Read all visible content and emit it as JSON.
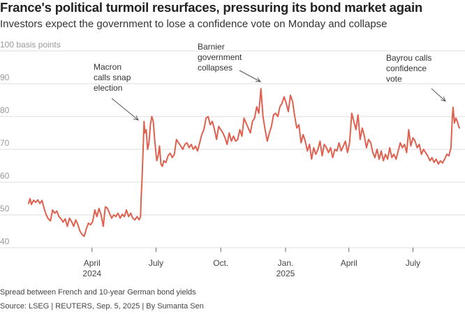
{
  "header": {
    "title": "France's political turmoil resurfaces, pressuring its bond market again",
    "subtitle": "Investors expect the government to lose a confidence vote on Monday and collapse"
  },
  "footer": {
    "note": "Spread between French and 10-year German bond yields",
    "source": "Source: LSEG | REUTERS, Sep. 5, 2025 | By Sumanta Sen"
  },
  "chart_data": {
    "type": "line",
    "title": "France's political turmoil resurfaces, pressuring its bond market again",
    "subtitle": "Investors expect the government to lose a confidence vote on Monday and collapse",
    "ylabel": "100 basis points",
    "ylim": [
      40,
      100
    ],
    "yticks": [
      100,
      90,
      80,
      70,
      60,
      50,
      40
    ],
    "ytick_labels": [
      "100 basis points",
      "90",
      "80",
      "70",
      "60",
      "50",
      "40"
    ],
    "xlim": [
      "2024-01-01",
      "2025-09-05"
    ],
    "xticks": [
      {
        "date": "2024-04-01",
        "label": "April",
        "sublabel": "2024"
      },
      {
        "date": "2024-07-01",
        "label": "July",
        "sublabel": ""
      },
      {
        "date": "2024-10-01",
        "label": "Oct.",
        "sublabel": ""
      },
      {
        "date": "2025-01-01",
        "label": "Jan.",
        "sublabel": "2025"
      },
      {
        "date": "2025-04-01",
        "label": "April",
        "sublabel": ""
      },
      {
        "date": "2025-07-01",
        "label": "July",
        "sublabel": ""
      }
    ],
    "grid": true,
    "color": "#e0604f",
    "series": [
      {
        "points": [
          [
            "2024-01-02",
            53.5
          ],
          [
            "2024-01-04",
            55.0
          ],
          [
            "2024-01-06",
            53.2
          ],
          [
            "2024-01-09",
            54.5
          ],
          [
            "2024-01-12",
            53.8
          ],
          [
            "2024-01-15",
            54.6
          ],
          [
            "2024-01-18",
            53.5
          ],
          [
            "2024-01-21",
            54.4
          ],
          [
            "2024-01-24",
            52.0
          ],
          [
            "2024-01-27",
            50.0
          ],
          [
            "2024-01-30",
            48.8
          ],
          [
            "2024-02-02",
            48.2
          ],
          [
            "2024-02-05",
            51.5
          ],
          [
            "2024-02-08",
            50.5
          ],
          [
            "2024-02-11",
            51.2
          ],
          [
            "2024-02-14",
            49.5
          ],
          [
            "2024-02-17",
            48.8
          ],
          [
            "2024-02-20",
            47.8
          ],
          [
            "2024-02-23",
            48.8
          ],
          [
            "2024-02-26",
            46.5
          ],
          [
            "2024-02-29",
            49.0
          ],
          [
            "2024-03-03",
            48.0
          ],
          [
            "2024-03-06",
            46.5
          ],
          [
            "2024-03-09",
            48.5
          ],
          [
            "2024-03-12",
            47.0
          ],
          [
            "2024-03-15",
            45.0
          ],
          [
            "2024-03-18",
            44.0
          ],
          [
            "2024-03-21",
            43.5
          ],
          [
            "2024-03-24",
            45.8
          ],
          [
            "2024-03-27",
            47.5
          ],
          [
            "2024-03-30",
            47.0
          ],
          [
            "2024-04-02",
            48.0
          ],
          [
            "2024-04-05",
            51.5
          ],
          [
            "2024-04-08",
            49.5
          ],
          [
            "2024-04-11",
            52.0
          ],
          [
            "2024-04-14",
            50.0
          ],
          [
            "2024-04-17",
            46.5
          ],
          [
            "2024-04-20",
            52.5
          ],
          [
            "2024-04-23",
            52.0
          ],
          [
            "2024-04-26",
            50.5
          ],
          [
            "2024-04-29",
            49.0
          ],
          [
            "2024-05-02",
            50.0
          ],
          [
            "2024-05-05",
            49.5
          ],
          [
            "2024-05-08",
            50.5
          ],
          [
            "2024-05-11",
            49.0
          ],
          [
            "2024-05-14",
            50.2
          ],
          [
            "2024-05-17",
            49.5
          ],
          [
            "2024-05-20",
            51.5
          ],
          [
            "2024-05-23",
            49.5
          ],
          [
            "2024-05-26",
            50.5
          ],
          [
            "2024-05-29",
            49.0
          ],
          [
            "2024-06-01",
            48.5
          ],
          [
            "2024-06-04",
            49.5
          ],
          [
            "2024-06-07",
            48.5
          ],
          [
            "2024-06-09",
            49.5
          ],
          [
            "2024-06-10",
            56.0
          ],
          [
            "2024-06-11",
            60.0
          ],
          [
            "2024-06-12",
            66.0
          ],
          [
            "2024-06-13",
            72.0
          ],
          [
            "2024-06-14",
            78.5
          ],
          [
            "2024-06-15",
            75.0
          ],
          [
            "2024-06-17",
            76.0
          ],
          [
            "2024-06-19",
            70.0
          ],
          [
            "2024-06-21",
            72.0
          ],
          [
            "2024-06-23",
            77.5
          ],
          [
            "2024-06-25",
            80.0
          ],
          [
            "2024-06-27",
            78.5
          ],
          [
            "2024-06-29",
            73.0
          ],
          [
            "2024-07-02",
            66.5
          ],
          [
            "2024-07-04",
            68.0
          ],
          [
            "2024-07-06",
            71.0
          ],
          [
            "2024-07-08",
            65.5
          ],
          [
            "2024-07-10",
            64.8
          ],
          [
            "2024-07-12",
            66.5
          ],
          [
            "2024-07-15",
            66.0
          ],
          [
            "2024-07-18",
            68.0
          ],
          [
            "2024-07-21",
            68.8
          ],
          [
            "2024-07-24",
            67.5
          ],
          [
            "2024-07-27",
            68.5
          ],
          [
            "2024-07-30",
            73.0
          ],
          [
            "2024-08-02",
            72.0
          ],
          [
            "2024-08-05",
            71.0
          ],
          [
            "2024-08-08",
            70.0
          ],
          [
            "2024-08-11",
            71.5
          ],
          [
            "2024-08-14",
            72.0
          ],
          [
            "2024-08-17",
            70.5
          ],
          [
            "2024-08-20",
            71.5
          ],
          [
            "2024-08-23",
            70.0
          ],
          [
            "2024-08-26",
            71.0
          ],
          [
            "2024-08-29",
            69.5
          ],
          [
            "2024-09-01",
            72.0
          ],
          [
            "2024-09-04",
            74.5
          ],
          [
            "2024-09-07",
            76.0
          ],
          [
            "2024-09-10",
            79.5
          ],
          [
            "2024-09-13",
            80.0
          ],
          [
            "2024-09-16",
            77.5
          ],
          [
            "2024-09-19",
            78.5
          ],
          [
            "2024-09-22",
            76.0
          ],
          [
            "2024-09-25",
            73.0
          ],
          [
            "2024-09-28",
            77.0
          ],
          [
            "2024-10-01",
            76.0
          ],
          [
            "2024-10-04",
            75.0
          ],
          [
            "2024-10-07",
            73.5
          ],
          [
            "2024-10-10",
            71.5
          ],
          [
            "2024-10-13",
            75.0
          ],
          [
            "2024-10-16",
            72.5
          ],
          [
            "2024-10-19",
            74.0
          ],
          [
            "2024-10-22",
            72.5
          ],
          [
            "2024-10-25",
            73.0
          ],
          [
            "2024-10-28",
            76.0
          ],
          [
            "2024-10-31",
            74.0
          ],
          [
            "2024-11-03",
            79.5
          ],
          [
            "2024-11-06",
            78.0
          ],
          [
            "2024-11-09",
            76.5
          ],
          [
            "2024-11-12",
            75.0
          ],
          [
            "2024-11-15",
            78.5
          ],
          [
            "2024-11-18",
            79.5
          ],
          [
            "2024-11-21",
            83.0
          ],
          [
            "2024-11-24",
            81.0
          ],
          [
            "2024-11-27",
            88.5
          ],
          [
            "2024-11-30",
            80.0
          ],
          [
            "2024-12-03",
            76.0
          ],
          [
            "2024-12-06",
            72.5
          ],
          [
            "2024-12-09",
            75.0
          ],
          [
            "2024-12-12",
            77.0
          ],
          [
            "2024-12-15",
            80.5
          ],
          [
            "2024-12-18",
            81.0
          ],
          [
            "2024-12-21",
            80.0
          ],
          [
            "2024-12-24",
            83.0
          ],
          [
            "2024-12-27",
            84.0
          ],
          [
            "2024-12-30",
            86.0
          ],
          [
            "2025-01-02",
            84.0
          ],
          [
            "2025-01-05",
            81.5
          ],
          [
            "2025-01-08",
            86.5
          ],
          [
            "2025-01-11",
            84.5
          ],
          [
            "2025-01-14",
            80.0
          ],
          [
            "2025-01-17",
            76.5
          ],
          [
            "2025-01-20",
            77.5
          ],
          [
            "2025-01-23",
            72.0
          ],
          [
            "2025-01-26",
            74.5
          ],
          [
            "2025-01-29",
            72.5
          ],
          [
            "2025-02-01",
            69.5
          ],
          [
            "2025-02-04",
            71.5
          ],
          [
            "2025-02-07",
            67.0
          ],
          [
            "2025-02-10",
            70.5
          ],
          [
            "2025-02-13",
            68.5
          ],
          [
            "2025-02-16",
            70.0
          ],
          [
            "2025-02-19",
            72.5
          ],
          [
            "2025-02-22",
            68.0
          ],
          [
            "2025-02-25",
            71.5
          ],
          [
            "2025-02-28",
            70.5
          ],
          [
            "2025-03-03",
            69.0
          ],
          [
            "2025-03-06",
            70.5
          ],
          [
            "2025-03-09",
            67.5
          ],
          [
            "2025-03-12",
            70.0
          ],
          [
            "2025-03-15",
            69.5
          ],
          [
            "2025-03-18",
            72.0
          ],
          [
            "2025-03-21",
            69.5
          ],
          [
            "2025-03-24",
            71.0
          ],
          [
            "2025-03-27",
            72.5
          ],
          [
            "2025-03-30",
            69.0
          ],
          [
            "2025-04-02",
            72.0
          ],
          [
            "2025-04-05",
            81.0
          ],
          [
            "2025-04-08",
            78.5
          ],
          [
            "2025-04-11",
            76.0
          ],
          [
            "2025-04-14",
            80.5
          ],
          [
            "2025-04-17",
            73.0
          ],
          [
            "2025-04-20",
            76.5
          ],
          [
            "2025-04-23",
            74.0
          ],
          [
            "2025-04-26",
            70.5
          ],
          [
            "2025-04-29",
            73.0
          ],
          [
            "2025-05-02",
            72.0
          ],
          [
            "2025-05-05",
            69.0
          ],
          [
            "2025-05-08",
            67.5
          ],
          [
            "2025-05-11",
            70.0
          ],
          [
            "2025-05-14",
            67.0
          ],
          [
            "2025-05-17",
            69.5
          ],
          [
            "2025-05-20",
            66.5
          ],
          [
            "2025-05-23",
            68.5
          ],
          [
            "2025-05-26",
            67.0
          ],
          [
            "2025-05-29",
            70.5
          ],
          [
            "2025-06-01",
            67.5
          ],
          [
            "2025-06-04",
            68.5
          ],
          [
            "2025-06-07",
            67.0
          ],
          [
            "2025-06-10",
            69.5
          ],
          [
            "2025-06-13",
            72.0
          ],
          [
            "2025-06-16",
            70.5
          ],
          [
            "2025-06-19",
            71.5
          ],
          [
            "2025-06-22",
            69.0
          ],
          [
            "2025-06-25",
            76.0
          ],
          [
            "2025-06-28",
            71.0
          ],
          [
            "2025-07-01",
            73.5
          ],
          [
            "2025-07-04",
            72.5
          ],
          [
            "2025-07-07",
            70.5
          ],
          [
            "2025-07-10",
            71.5
          ],
          [
            "2025-07-13",
            68.5
          ],
          [
            "2025-07-16",
            70.0
          ],
          [
            "2025-07-19",
            69.0
          ],
          [
            "2025-07-22",
            68.0
          ],
          [
            "2025-07-25",
            66.5
          ],
          [
            "2025-07-28",
            67.5
          ],
          [
            "2025-07-31",
            66.0
          ],
          [
            "2025-08-03",
            67.0
          ],
          [
            "2025-08-06",
            65.5
          ],
          [
            "2025-08-09",
            66.5
          ],
          [
            "2025-08-12",
            65.8
          ],
          [
            "2025-08-15",
            67.0
          ],
          [
            "2025-08-18",
            68.5
          ],
          [
            "2025-08-21",
            68.0
          ],
          [
            "2025-08-24",
            70.5
          ],
          [
            "2025-08-26",
            80.0
          ],
          [
            "2025-08-27",
            82.8
          ],
          [
            "2025-08-29",
            78.0
          ],
          [
            "2025-08-31",
            79.5
          ],
          [
            "2025-09-02",
            78.5
          ],
          [
            "2025-09-04",
            77.0
          ],
          [
            "2025-09-05",
            76.5
          ]
        ]
      }
    ],
    "annotations": [
      {
        "id": "snap",
        "lines": [
          "Macron",
          "calls snap",
          "election"
        ],
        "date": "2024-06-10",
        "value": 78
      },
      {
        "id": "barnier",
        "lines": [
          "Barnier",
          "government",
          "collapses"
        ],
        "date": "2024-12-04",
        "value": 88
      },
      {
        "id": "bayrou",
        "lines": [
          "Bayrou calls",
          "confidence",
          "vote"
        ],
        "date": "2025-08-25",
        "value": 82
      }
    ]
  }
}
